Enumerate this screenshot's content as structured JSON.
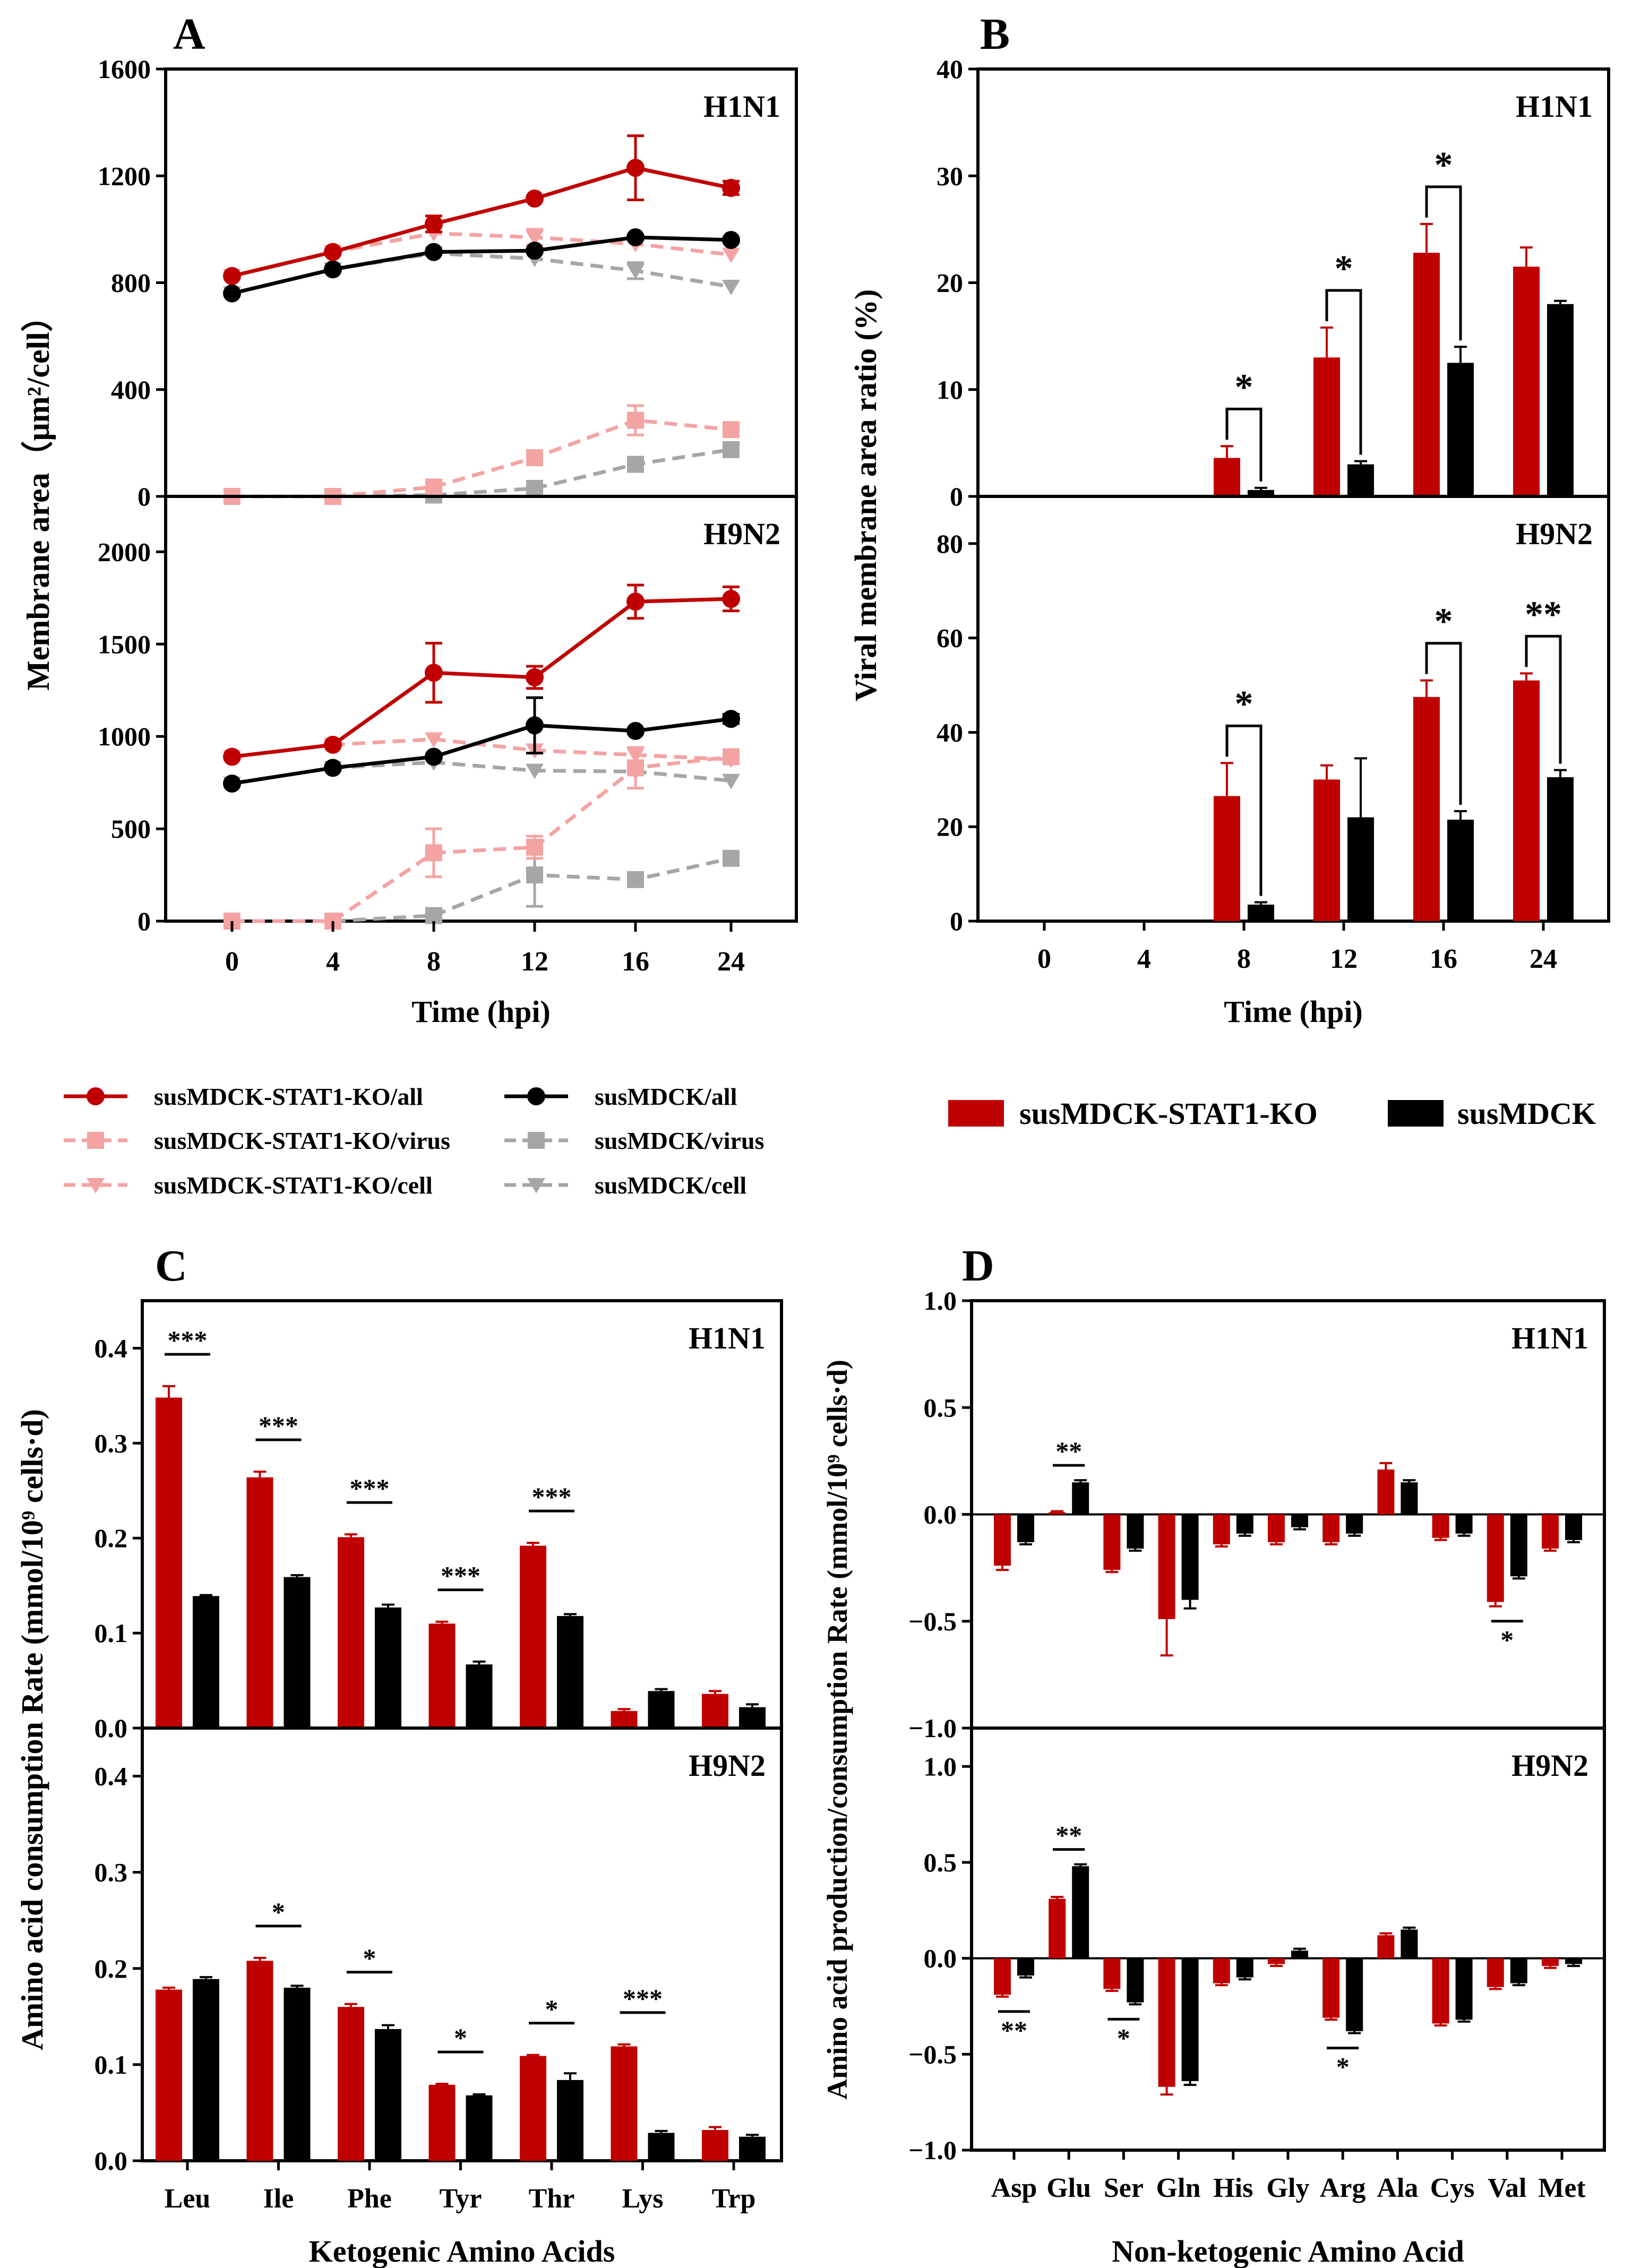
{
  "colors": {
    "red": "#c00000",
    "black": "#000000",
    "pink": "#f4a3a3",
    "grey": "#a6a6a6"
  },
  "panels": {
    "A": "A",
    "B": "B",
    "C": "C",
    "D": "D"
  },
  "chart_data": [
    {
      "id": "A",
      "type": "line",
      "ylabel": "Membrane area（μm²/cell）",
      "xlabel": "Time (hpi)",
      "x": [
        0,
        4,
        8,
        12,
        16,
        24
      ],
      "x_ticks": [
        "0",
        "4",
        "8",
        "12",
        "16",
        "24"
      ],
      "subplots": [
        {
          "title": "H1N1",
          "ylim": [
            0,
            1600
          ],
          "y_ticks": [
            "0",
            "400",
            "800",
            "1200",
            "1600"
          ],
          "series": [
            {
              "name": "susMDCK-STAT1-KO/all",
              "color": "red",
              "dash": false,
              "marker": "circle",
              "values": [
                825,
                915,
                1020,
                1115,
                1230,
                1155
              ],
              "errors": [
                0,
                0,
                30,
                0,
                120,
                25
              ]
            },
            {
              "name": "susMDCK/all",
              "color": "black",
              "dash": false,
              "marker": "circle",
              "values": [
                760,
                850,
                915,
                920,
                970,
                960
              ],
              "errors": [
                0,
                0,
                0,
                0,
                0,
                0
              ]
            },
            {
              "name": "susMDCK-STAT1-KO/virus",
              "color": "pink",
              "dash": true,
              "marker": "square",
              "values": [
                0,
                0,
                35,
                145,
                285,
                250
              ],
              "errors": [
                0,
                0,
                0,
                0,
                55,
                0
              ]
            },
            {
              "name": "susMDCK/virus",
              "color": "grey",
              "dash": true,
              "marker": "square",
              "values": [
                0,
                0,
                5,
                30,
                120,
                175
              ],
              "errors": [
                0,
                0,
                0,
                0,
                0,
                0
              ]
            },
            {
              "name": "susMDCK-STAT1-KO/cell",
              "color": "pink",
              "dash": true,
              "marker": "triangle-down",
              "values": [
                825,
                915,
                985,
                970,
                945,
                905
              ],
              "errors": [
                0,
                0,
                0,
                30,
                0,
                0
              ]
            },
            {
              "name": "susMDCK/cell",
              "color": "grey",
              "dash": true,
              "marker": "triangle-down",
              "values": [
                760,
                850,
                910,
                890,
                845,
                785
              ],
              "errors": [
                0,
                0,
                0,
                0,
                30,
                0
              ]
            }
          ]
        },
        {
          "title": "H9N2",
          "ylim": [
            0,
            2300
          ],
          "y_ticks": [
            "0",
            "500",
            "1000",
            "1500",
            "2000"
          ],
          "series": [
            {
              "name": "susMDCK-STAT1-KO/all",
              "color": "red",
              "dash": false,
              "marker": "circle",
              "values": [
                890,
                955,
                1345,
                1320,
                1730,
                1745
              ],
              "errors": [
                0,
                0,
                160,
                60,
                90,
                65
              ]
            },
            {
              "name": "susMDCK/all",
              "color": "black",
              "dash": false,
              "marker": "circle",
              "values": [
                745,
                830,
                890,
                1060,
                1030,
                1095
              ],
              "errors": [
                0,
                0,
                0,
                150,
                0,
                25
              ]
            },
            {
              "name": "susMDCK-STAT1-KO/virus",
              "color": "pink",
              "dash": true,
              "marker": "square",
              "values": [
                0,
                0,
                370,
                400,
                830,
                890
              ],
              "errors": [
                0,
                0,
                130,
                60,
                110,
                0
              ]
            },
            {
              "name": "susMDCK/virus",
              "color": "grey",
              "dash": true,
              "marker": "square",
              "values": [
                0,
                0,
                30,
                250,
                225,
                340
              ],
              "errors": [
                0,
                0,
                0,
                170,
                0,
                0
              ]
            },
            {
              "name": "susMDCK-STAT1-KO/cell",
              "color": "pink",
              "dash": true,
              "marker": "triangle-down",
              "values": [
                890,
                955,
                985,
                925,
                900,
                875
              ],
              "errors": [
                0,
                0,
                0,
                0,
                0,
                0
              ]
            },
            {
              "name": "susMDCK/cell",
              "color": "grey",
              "dash": true,
              "marker": "triangle-down",
              "values": [
                745,
                830,
                860,
                815,
                810,
                760
              ],
              "errors": [
                0,
                0,
                0,
                0,
                0,
                0
              ]
            }
          ]
        }
      ]
    },
    {
      "id": "B",
      "type": "bar",
      "ylabel": "Viral membrane area ratio (%)",
      "xlabel": "Time (hpi)",
      "categories": [
        "0",
        "4",
        "8",
        "12",
        "16",
        "24"
      ],
      "series_names": [
        "susMDCK-STAT1-KO",
        "susMDCK"
      ],
      "series_colors": [
        "red",
        "black"
      ],
      "subplots": [
        {
          "title": "H1N1",
          "ylim": [
            0,
            40
          ],
          "y_ticks": [
            "0",
            "10",
            "20",
            "30",
            "40"
          ],
          "series": [
            {
              "name": "susMDCK-STAT1-KO",
              "values": [
                0,
                0,
                3.6,
                13.0,
                22.8,
                21.5
              ],
              "errors": [
                0,
                0,
                1.1,
                2.8,
                2.7,
                1.8
              ]
            },
            {
              "name": "susMDCK",
              "values": [
                0,
                0,
                0.6,
                3.0,
                12.5,
                18.0
              ],
              "errors": [
                0,
                0,
                0.2,
                0.3,
                1.5,
                0.3
              ]
            }
          ],
          "significance": [
            {
              "index": 2,
              "label": "*"
            },
            {
              "index": 3,
              "label": "*"
            },
            {
              "index": 4,
              "label": "*"
            }
          ]
        },
        {
          "title": "H9N2",
          "ylim": [
            0,
            90
          ],
          "y_ticks": [
            "0",
            "20",
            "40",
            "60",
            "80"
          ],
          "series": [
            {
              "name": "susMDCK-STAT1-KO",
              "values": [
                0,
                0,
                26.5,
                30.0,
                47.5,
                51.0
              ],
              "errors": [
                0,
                0,
                7.0,
                3.0,
                3.5,
                1.5
              ]
            },
            {
              "name": "susMDCK",
              "values": [
                0,
                0,
                3.5,
                22.0,
                21.5,
                30.5
              ],
              "errors": [
                0,
                0,
                0.5,
                12.5,
                1.8,
                1.5
              ]
            }
          ],
          "significance": [
            {
              "index": 2,
              "label": "*"
            },
            {
              "index": 4,
              "label": "*"
            },
            {
              "index": 5,
              "label": "**"
            }
          ]
        }
      ]
    },
    {
      "id": "C",
      "type": "bar",
      "ylabel": "Amino acid consumption Rate (mmol/10⁹ cells·d)",
      "xlabel": "Ketogenic Amino Acids",
      "categories": [
        "Leu",
        "Ile",
        "Phe",
        "Tyr",
        "Thr",
        "Lys",
        "Trp"
      ],
      "subplots": [
        {
          "title": "H1N1",
          "ylim": [
            0,
            0.45
          ],
          "y_ticks": [
            "0.0",
            "0.1",
            "0.2",
            "0.3",
            "0.4"
          ],
          "series": [
            {
              "name": "susMDCK-STAT1-KO",
              "values": [
                0.348,
                0.264,
                0.201,
                0.11,
                0.192,
                0.018,
                0.036
              ],
              "errors": [
                0.012,
                0.006,
                0.003,
                0.002,
                0.003,
                0.002,
                0.003
              ]
            },
            {
              "name": "susMDCK",
              "values": [
                0.139,
                0.159,
                0.127,
                0.067,
                0.118,
                0.039,
                0.022
              ],
              "errors": [
                0.001,
                0.002,
                0.003,
                0.003,
                0.002,
                0.002,
                0.003
              ]
            }
          ],
          "significance": [
            {
              "index": 0,
              "label": "***"
            },
            {
              "index": 1,
              "label": "***"
            },
            {
              "index": 2,
              "label": "***"
            },
            {
              "index": 3,
              "label": "***"
            },
            {
              "index": 4,
              "label": "***"
            }
          ]
        },
        {
          "title": "H9N2",
          "ylim": [
            0,
            0.45
          ],
          "y_ticks": [
            "0.0",
            "0.1",
            "0.2",
            "0.3",
            "0.4"
          ],
          "series": [
            {
              "name": "susMDCK-STAT1-KO",
              "values": [
                0.178,
                0.208,
                0.16,
                0.079,
                0.109,
                0.119,
                0.032
              ],
              "errors": [
                0.002,
                0.003,
                0.003,
                0.001,
                0.001,
                0.002,
                0.003
              ]
            },
            {
              "name": "susMDCK",
              "values": [
                0.189,
                0.18,
                0.137,
                0.068,
                0.084,
                0.029,
                0.025
              ],
              "errors": [
                0.002,
                0.002,
                0.004,
                0.001,
                0.007,
                0.002,
                0.002
              ]
            }
          ],
          "significance": [
            {
              "index": 1,
              "label": "*"
            },
            {
              "index": 2,
              "label": "*"
            },
            {
              "index": 3,
              "label": "*"
            },
            {
              "index": 4,
              "label": "*"
            },
            {
              "index": 5,
              "label": "***"
            }
          ]
        }
      ]
    },
    {
      "id": "D",
      "type": "bar",
      "ylabel": "Amino acid production/consumption Rate (mmol/10⁹ cells·d)",
      "xlabel": "Non-ketogenic Amino Acid",
      "categories": [
        "Asp",
        "Glu",
        "Ser",
        "Gln",
        "His",
        "Gly",
        "Arg",
        "Ala",
        "Cys",
        "Val",
        "Met"
      ],
      "subplots": [
        {
          "title": "H1N1",
          "ylim": [
            -1.0,
            1.0
          ],
          "y_ticks": [
            "1.0",
            "0.5",
            "0.0",
            "−0.5",
            "−1.0"
          ],
          "y_tick_values": [
            1.0,
            0.5,
            0.0,
            -0.5,
            -1.0
          ],
          "series": [
            {
              "name": "susMDCK-STAT1-KO",
              "values": [
                -0.24,
                0.01,
                -0.26,
                -0.49,
                -0.14,
                -0.13,
                -0.13,
                0.21,
                -0.11,
                -0.41,
                -0.16
              ],
              "errors": [
                0.02,
                0.005,
                0.01,
                0.17,
                0.01,
                0.01,
                0.01,
                0.03,
                0.01,
                0.02,
                0.01
              ]
            },
            {
              "name": "susMDCK",
              "values": [
                -0.13,
                0.15,
                -0.16,
                -0.4,
                -0.09,
                -0.06,
                -0.09,
                0.15,
                -0.09,
                -0.29,
                -0.12
              ],
              "errors": [
                0.01,
                0.01,
                0.01,
                0.04,
                0.01,
                0.01,
                0.01,
                0.01,
                0.01,
                0.01,
                0.01
              ]
            }
          ],
          "significance": [
            {
              "index": 1,
              "label": "**",
              "position": "above"
            },
            {
              "index": 9,
              "label": "*",
              "position": "below"
            }
          ]
        },
        {
          "title": "H9N2",
          "ylim": [
            -1.0,
            1.2
          ],
          "y_ticks": [
            "1.0",
            "0.5",
            "0.0",
            "−0.5",
            "−1.0"
          ],
          "y_tick_values": [
            1.0,
            0.5,
            0.0,
            -0.5,
            -1.0
          ],
          "series": [
            {
              "name": "susMDCK-STAT1-KO",
              "values": [
                -0.19,
                0.31,
                -0.16,
                -0.67,
                -0.13,
                -0.03,
                -0.31,
                0.12,
                -0.34,
                -0.15,
                -0.04
              ],
              "errors": [
                0.01,
                0.01,
                0.01,
                0.04,
                0.01,
                0.01,
                0.01,
                0.01,
                0.01,
                0.01,
                0.01
              ]
            },
            {
              "name": "susMDCK",
              "values": [
                -0.09,
                0.48,
                -0.23,
                -0.64,
                -0.1,
                0.04,
                -0.38,
                0.15,
                -0.32,
                -0.13,
                -0.03
              ],
              "errors": [
                0.01,
                0.01,
                0.01,
                0.02,
                0.01,
                0.01,
                0.01,
                0.01,
                0.01,
                0.01,
                0.01
              ]
            }
          ],
          "significance": [
            {
              "index": 0,
              "label": "**",
              "position": "below"
            },
            {
              "index": 1,
              "label": "**",
              "position": "above"
            },
            {
              "index": 2,
              "label": "*",
              "position": "below"
            },
            {
              "index": 6,
              "label": "*",
              "position": "below"
            }
          ]
        }
      ]
    }
  ]
}
